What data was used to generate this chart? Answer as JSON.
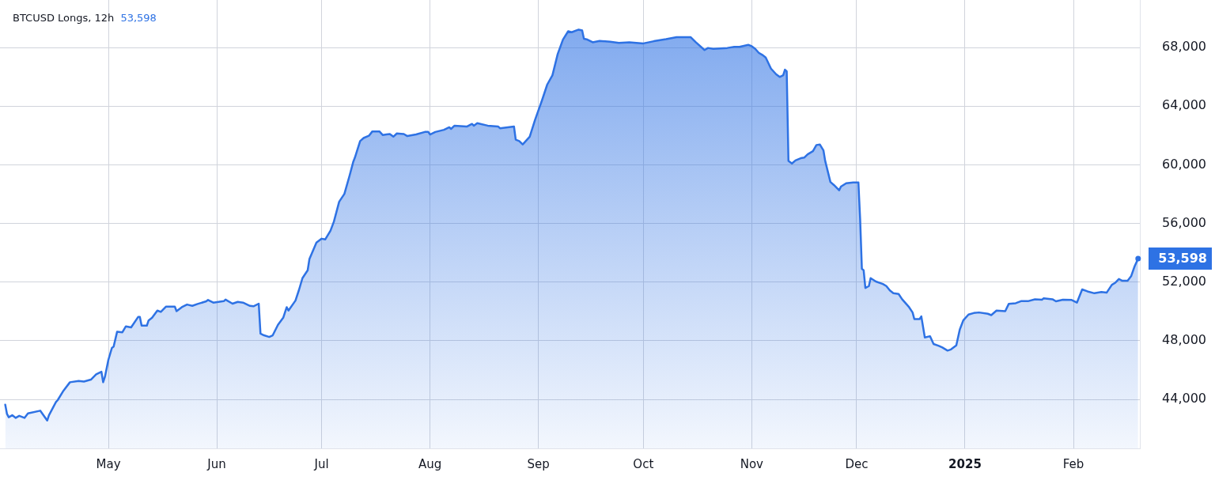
{
  "chart_data": {
    "type": "area",
    "title": "BTCUSD Longs, 12h",
    "subtitle": "53,598",
    "x": [
      "2024-04-01T12:00",
      "2024-04-02",
      "2024-04-02T12:00",
      "2024-04-03T12:00",
      "2024-04-04T12:00",
      "2024-04-05T12:00",
      "2024-04-07",
      "2024-04-08",
      "2024-04-11T12:00",
      "2024-04-13T12:00",
      "2024-04-14",
      "2024-04-16",
      "2024-04-16T12:00",
      "2024-04-18",
      "2024-04-20",
      "2024-04-22T12:00",
      "2024-04-24",
      "2024-04-26",
      "2024-04-27T12:00",
      "2024-04-29",
      "2024-04-29T12:00",
      "2024-04-30",
      "2024-05-01",
      "2024-05-02",
      "2024-05-02T12:00",
      "2024-05-03T12:00",
      "2024-05-05",
      "2024-05-06",
      "2024-05-07T12:00",
      "2024-05-09T12:00",
      "2024-05-10",
      "2024-05-10T12:00",
      "2024-05-12",
      "2024-05-12T12:00",
      "2024-05-13T12:00",
      "2024-05-15",
      "2024-05-16",
      "2024-05-17T12:00",
      "2024-05-20",
      "2024-05-20T12:00",
      "2024-05-22",
      "2024-05-23T12:00",
      "2024-05-25",
      "2024-05-26T12:00",
      "2024-05-29",
      "2024-05-29T12:00",
      "2024-05-31",
      "2024-06-03",
      "2024-06-03T12:00",
      "2024-06-05T12:00",
      "2024-06-07",
      "2024-06-08T12:00",
      "2024-06-10T12:00",
      "2024-06-11T12:00",
      "2024-06-13",
      "2024-06-13T12:00",
      "2024-06-14T12:00",
      "2024-06-16",
      "2024-06-17",
      "2024-06-18T12:00",
      "2024-06-20",
      "2024-06-21",
      "2024-06-21T12:00",
      "2024-06-23T12:00",
      "2024-06-24T12:00",
      "2024-06-25T12:00",
      "2024-06-27",
      "2024-06-27T12:00",
      "2024-06-29T12:00",
      "2024-07-01",
      "2024-07-02",
      "2024-07-03T12:00",
      "2024-07-04T12:00",
      "2024-07-06",
      "2024-07-07T12:00",
      "2024-07-09",
      "2024-07-10",
      "2024-07-10T12:00",
      "2024-07-12",
      "2024-07-13",
      "2024-07-14T12:00",
      "2024-07-15T12:00",
      "2024-07-17T12:00",
      "2024-07-18T12:00",
      "2024-07-19T12:00",
      "2024-07-20T12:00",
      "2024-07-21T12:00",
      "2024-07-22T12:00",
      "2024-07-24T12:00",
      "2024-07-25T12:00",
      "2024-07-28",
      "2024-07-30T12:00",
      "2024-07-31T12:00",
      "2024-08-01",
      "2024-08-02T12:00",
      "2024-08-05",
      "2024-08-06T12:00",
      "2024-08-07",
      "2024-08-08",
      "2024-08-11T12:00",
      "2024-08-13",
      "2024-08-13T12:00",
      "2024-08-14T12:00",
      "2024-08-17T12:00",
      "2024-08-20T12:00",
      "2024-08-21",
      "2024-08-25",
      "2024-08-25T12:00",
      "2024-08-26T12:00",
      "2024-08-27T12:00",
      "2024-08-29T12:00",
      "2024-08-31",
      "2024-09-02",
      "2024-09-03T12:00",
      "2024-09-05",
      "2024-09-06T12:00",
      "2024-09-08",
      "2024-09-09T12:00",
      "2024-09-10T12:00",
      "2024-09-12T12:00",
      "2024-09-13T12:00",
      "2024-09-14",
      "2024-09-15",
      "2024-09-16T12:00",
      "2024-09-18T12:00",
      "2024-09-21T12:00",
      "2024-09-24",
      "2024-09-27",
      "2024-10-01",
      "2024-10-04",
      "2024-10-07T12:00",
      "2024-10-10T12:00",
      "2024-10-14T12:00",
      "2024-10-16",
      "2024-10-18T12:00",
      "2024-10-19T12:00",
      "2024-10-21",
      "2024-10-25",
      "2024-10-27",
      "2024-10-28T12:00",
      "2024-10-31",
      "2024-11-01",
      "2024-11-02",
      "2024-11-03",
      "2024-11-04",
      "2024-11-05",
      "2024-11-06T12:00",
      "2024-11-08",
      "2024-11-09",
      "2024-11-10",
      "2024-11-10T12:00",
      "2024-11-11",
      "2024-11-11T12:00",
      "2024-11-12T12:00",
      "2024-11-13T12:00",
      "2024-11-15",
      "2024-11-16",
      "2024-11-17",
      "2024-11-18T12:00",
      "2024-11-19T12:00",
      "2024-11-20T12:00",
      "2024-11-21T12:00",
      "2024-11-22",
      "2024-11-23T12:00",
      "2024-11-24T12:00",
      "2024-11-26",
      "2024-11-26T12:00",
      "2024-11-28",
      "2024-11-30",
      "2024-12-01T12:00",
      "2024-12-02",
      "2024-12-02T12:00",
      "2024-12-03",
      "2024-12-03T12:00",
      "2024-12-04T12:00",
      "2024-12-05",
      "2024-12-06T12:00",
      "2024-12-08T12:00",
      "2024-12-09T12:00",
      "2024-12-10T12:00",
      "2024-12-11T12:00",
      "2024-12-13",
      "2024-12-14",
      "2024-12-16",
      "2024-12-17",
      "2024-12-17T12:00",
      "2024-12-19",
      "2024-12-19T12:00",
      "2024-12-20T12:00",
      "2024-12-22",
      "2024-12-23",
      "2024-12-24T12:00",
      "2024-12-25T12:00",
      "2024-12-27",
      "2024-12-28",
      "2024-12-29T12:00",
      "2024-12-30T12:00",
      "2024-12-31T12:00",
      "2025-01-02",
      "2025-01-03T12:00",
      "2025-01-05",
      "2025-01-07T12:00",
      "2025-01-08T12:00",
      "2025-01-10",
      "2025-01-12T12:00",
      "2025-01-13T12:00",
      "2025-01-15T12:00",
      "2025-01-17",
      "2025-01-19",
      "2025-01-21",
      "2025-01-23",
      "2025-01-23T12:00",
      "2025-01-26",
      "2025-01-27",
      "2025-01-29",
      "2025-01-31T12:00",
      "2025-02-02",
      "2025-02-03T12:00",
      "2025-02-05",
      "2025-02-07",
      "2025-02-09",
      "2025-02-10T12:00",
      "2025-02-12",
      "2025-02-13",
      "2025-02-14",
      "2025-02-15",
      "2025-02-16T12:00",
      "2025-02-17T12:00",
      "2025-02-18T12:00",
      "2025-02-19T12:00"
    ],
    "values": [
      43640,
      43010,
      42780,
      42920,
      42740,
      42880,
      42740,
      43050,
      43230,
      42560,
      42920,
      43820,
      43950,
      44540,
      45170,
      45260,
      45220,
      45350,
      45710,
      45890,
      45170,
      45530,
      46700,
      47510,
      47600,
      48620,
      48580,
      48980,
      48910,
      49620,
      49620,
      49030,
      49030,
      49390,
      49570,
      50060,
      49970,
      50330,
      50330,
      50020,
      50290,
      50470,
      50380,
      50510,
      50690,
      50780,
      50600,
      50700,
      50810,
      50530,
      50650,
      50600,
      50380,
      50350,
      50530,
      48490,
      48370,
      48260,
      48370,
      49090,
      49570,
      50290,
      50060,
      50740,
      51460,
      52270,
      52810,
      53580,
      54690,
      54960,
      54910,
      55500,
      56130,
      57480,
      58020,
      59280,
      60180,
      60490,
      61620,
      61830,
      61980,
      62280,
      62280,
      62030,
      62070,
      62100,
      61920,
      62140,
      62100,
      61960,
      62070,
      62240,
      62240,
      62070,
      62240,
      62390,
      62560,
      62450,
      62670,
      62610,
      62790,
      62670,
      62840,
      62670,
      62610,
      62490,
      62610,
      61710,
      61620,
      61390,
      61920,
      63050,
      64390,
      65470,
      66110,
      67550,
      68540,
      69110,
      69040,
      69220,
      69160,
      68600,
      68540,
      68360,
      68450,
      68390,
      68320,
      68360,
      68280,
      68430,
      68570,
      68710,
      68710,
      68360,
      67830,
      67970,
      67910,
      67970,
      68040,
      68040,
      68180,
      68090,
      67910,
      67640,
      67500,
      67320,
      66560,
      66170,
      65990,
      66110,
      66490,
      66380,
      60270,
      60090,
      60300,
      60450,
      60490,
      60720,
      60930,
      61350,
      61380,
      60990,
      60270,
      58830,
      58620,
      58260,
      58510,
      58740,
      58800,
      58800,
      56310,
      52900,
      52810,
      51600,
      51730,
      52270,
      52040,
      51870,
      51730,
      51430,
      51240,
      51190,
      50830,
      50290,
      49930,
      49480,
      49480,
      49660,
      48220,
      48310,
      47780,
      47650,
      47540,
      47330,
      47410,
      47680,
      48760,
      49390,
      49790,
      49890,
      49930,
      49840,
      49750,
      50060,
      50020,
      50510,
      50560,
      50700,
      50700,
      50830,
      50800,
      50890,
      50830,
      50690,
      50800,
      50780,
      50600,
      51500,
      51370,
      51240,
      51330,
      51280,
      51820,
      51960,
      52210,
      52090,
      52090,
      52400,
      53080,
      53598
    ],
    "value_labels": [
      null,
      null,
      null,
      null,
      null,
      null,
      null,
      null,
      null,
      null,
      null,
      null,
      null,
      null,
      null,
      null,
      null,
      null,
      null,
      null,
      null,
      null,
      null,
      null,
      null,
      null,
      null,
      null,
      null,
      null,
      null,
      null,
      null,
      null,
      null,
      null,
      null,
      null,
      null,
      null,
      null,
      null,
      null,
      null,
      null,
      null,
      null,
      null,
      null,
      null,
      null,
      null,
      null,
      null,
      null,
      null,
      null,
      null,
      null,
      null,
      null,
      null,
      null,
      null,
      null,
      null,
      null,
      null,
      null,
      null,
      null,
      null,
      null,
      null,
      null,
      null,
      null,
      null,
      null,
      null,
      null,
      null,
      null,
      null,
      null,
      null,
      null,
      null,
      null,
      null,
      null,
      null,
      null,
      null,
      null,
      null,
      null,
      null,
      null,
      null,
      null,
      null,
      null,
      null,
      null,
      null,
      null,
      null,
      null,
      null,
      null,
      null,
      null,
      null,
      null,
      null,
      null,
      null,
      null,
      null,
      null,
      null,
      null,
      null,
      null,
      null,
      null,
      null,
      null,
      null,
      null,
      null,
      null,
      null,
      null,
      null,
      null,
      null,
      null,
      null,
      null,
      null,
      null,
      null,
      null,
      null,
      null,
      null,
      null,
      null,
      null,
      null,
      null,
      null,
      null,
      null,
      null,
      null,
      null,
      null,
      null,
      null,
      null,
      null,
      null,
      null,
      null,
      null,
      null,
      null,
      null,
      null,
      null,
      null,
      null,
      null,
      null,
      null,
      null,
      null,
      null,
      null,
      null,
      null,
      null,
      null,
      null,
      null,
      null,
      null,
      null,
      null,
      null,
      null,
      null,
      null,
      null,
      null,
      null,
      null,
      null,
      null,
      null,
      null,
      null,
      null,
      null,
      null,
      null,
      null,
      null,
      null,
      null,
      null,
      null,
      null,
      null,
      null,
      null,
      null,
      null,
      null,
      null,
      null,
      null,
      null,
      null,
      null,
      null,
      "53,598"
    ],
    "color": "#2e72e4",
    "xlim": [
      "2024-03-31",
      "2025-02-20"
    ],
    "xticks": [
      {
        "value": "2024-05-01",
        "label": "May"
      },
      {
        "value": "2024-06-01",
        "label": "Jun"
      },
      {
        "value": "2024-07-01",
        "label": "Jul"
      },
      {
        "value": "2024-08-01",
        "label": "Aug"
      },
      {
        "value": "2024-09-01",
        "label": "Sep"
      },
      {
        "value": "2024-10-01",
        "label": "Oct"
      },
      {
        "value": "2024-11-01",
        "label": "Nov"
      },
      {
        "value": "2024-12-01",
        "label": "Dec"
      },
      {
        "value": "2025-01-01",
        "label": "2025"
      },
      {
        "value": "2025-02-01",
        "label": "Feb"
      }
    ],
    "ylim": [
      40660,
      71240
    ],
    "yticks": [
      {
        "value": 44000,
        "label": "44,000"
      },
      {
        "value": 48000,
        "label": "48,000"
      },
      {
        "value": 52000,
        "label": "52,000"
      },
      {
        "value": 56000,
        "label": "56,000"
      },
      {
        "value": 60000,
        "label": "60,000"
      },
      {
        "value": 64000,
        "label": "64,000"
      },
      {
        "value": 68000,
        "label": "68,000"
      }
    ],
    "grid": true
  }
}
